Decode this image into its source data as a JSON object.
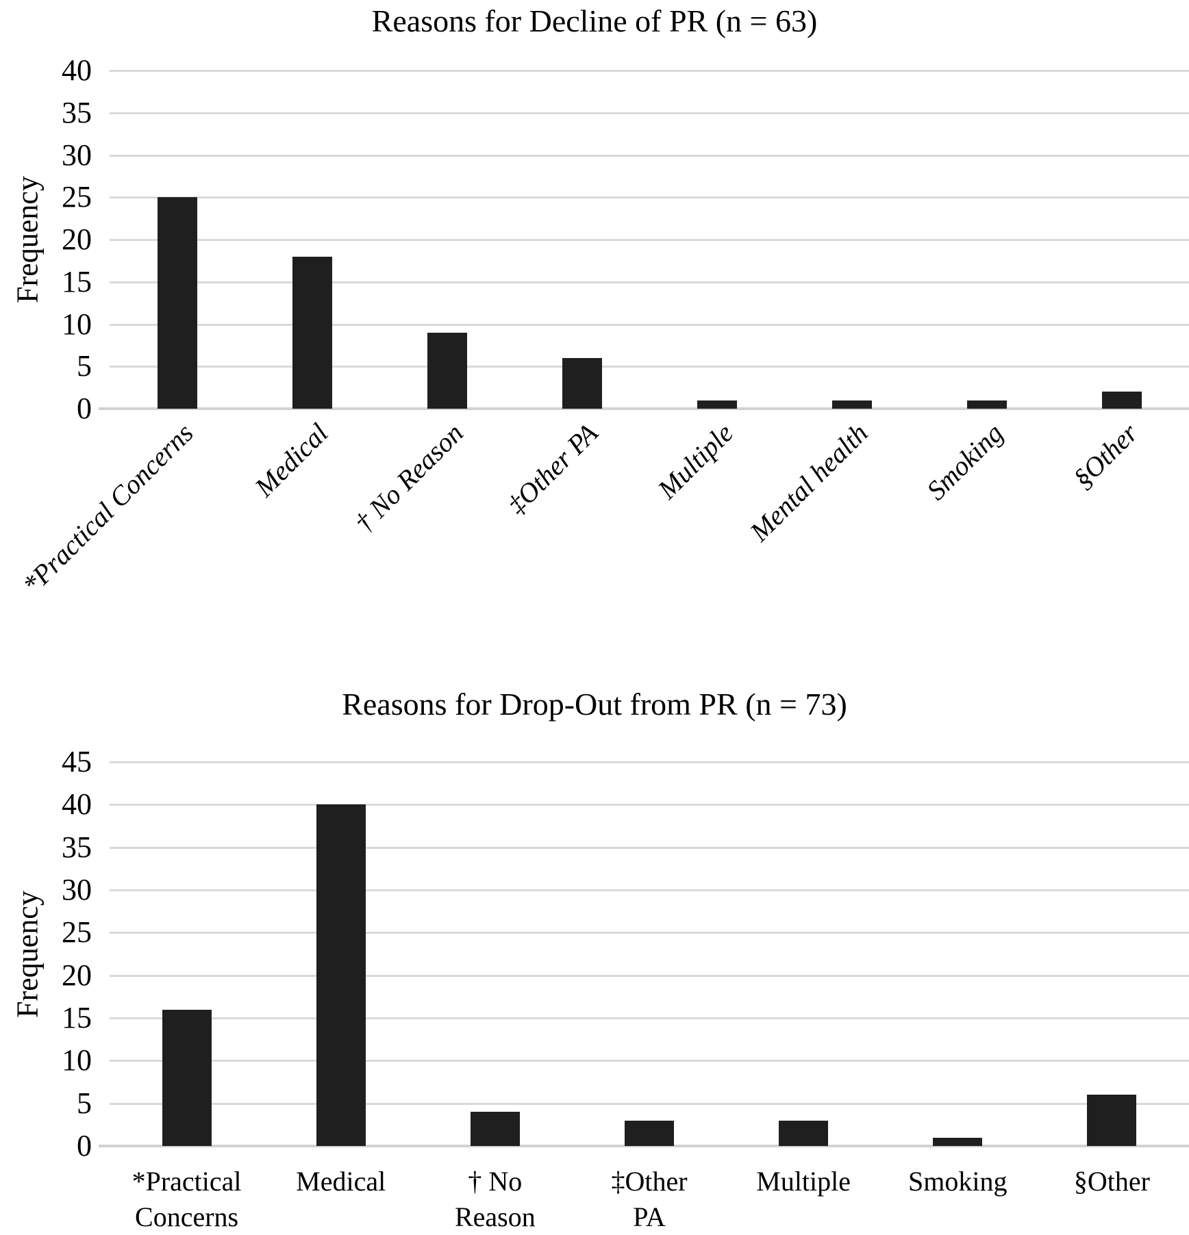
{
  "figure": {
    "background_color": "#ffffff",
    "bar_color": "#1f1f1f",
    "gridline_color": "#d9d9d9",
    "axis_line_color": "#d2d2d2",
    "text_color": "#000000"
  },
  "chart_data": [
    {
      "type": "bar",
      "title": "Reasons for Decline of PR (n = 63)",
      "ylabel": "Frequency",
      "xlabel": "",
      "ylim": [
        0,
        40
      ],
      "yticks": [
        0,
        5,
        10,
        15,
        20,
        25,
        30,
        35,
        40
      ],
      "grid": "horizontal",
      "legend": "none",
      "categories": [
        "*Practical Concerns",
        "Medical",
        "† No Reason",
        "‡Other PA",
        "Multiple",
        "Mental health",
        "Smoking",
        "§Other"
      ],
      "values": [
        25,
        18,
        9,
        6,
        1,
        1,
        1,
        2
      ],
      "category_label_rotation_deg": -45,
      "category_label_style": "italic"
    },
    {
      "type": "bar",
      "title": "Reasons for Drop-Out from PR (n = 73)",
      "ylabel": "Frequency",
      "xlabel": "",
      "ylim": [
        0,
        45
      ],
      "yticks": [
        0,
        5,
        10,
        15,
        20,
        25,
        30,
        35,
        40,
        45
      ],
      "grid": "horizontal",
      "legend": "none",
      "categories": [
        "*Practical\nConcerns",
        "Medical",
        "† No\nReason",
        "‡Other\nPA",
        "Multiple",
        "Smoking",
        "§Other"
      ],
      "values": [
        16,
        40,
        4,
        3,
        3,
        1,
        6
      ],
      "category_label_rotation_deg": 0,
      "category_label_style": "normal"
    }
  ]
}
